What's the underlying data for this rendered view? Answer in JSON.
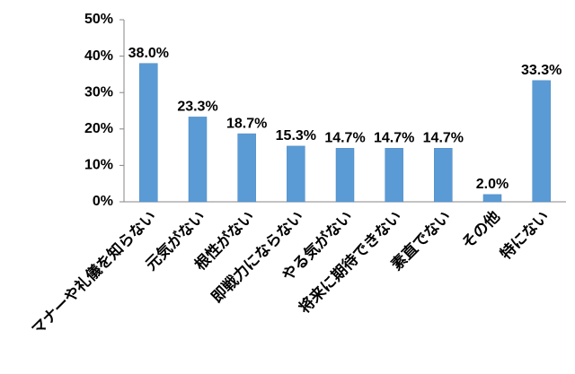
{
  "chart_data": {
    "type": "bar",
    "categories": [
      "マナーや礼儀を知らない",
      "元気がない",
      "根性がない",
      "即戦力にならない",
      "やる気がない",
      "将来に期待できない",
      "素直でない",
      "その他",
      "特にない"
    ],
    "values": [
      38.0,
      23.3,
      18.7,
      15.3,
      14.7,
      14.7,
      14.7,
      2.0,
      33.3
    ],
    "value_labels": [
      "38.0%",
      "23.3%",
      "18.7%",
      "15.3%",
      "14.7%",
      "14.7%",
      "14.7%",
      "2.0%",
      "33.3%"
    ],
    "color": "#5b9bd5",
    "ylim": [
      0,
      50
    ],
    "yticks": [
      {
        "value": 0,
        "label": "0%"
      },
      {
        "value": 10,
        "label": "10%"
      },
      {
        "value": 20,
        "label": "20%"
      },
      {
        "value": 30,
        "label": "30%"
      },
      {
        "value": 40,
        "label": "40%"
      },
      {
        "value": 50,
        "label": "50%"
      }
    ]
  }
}
